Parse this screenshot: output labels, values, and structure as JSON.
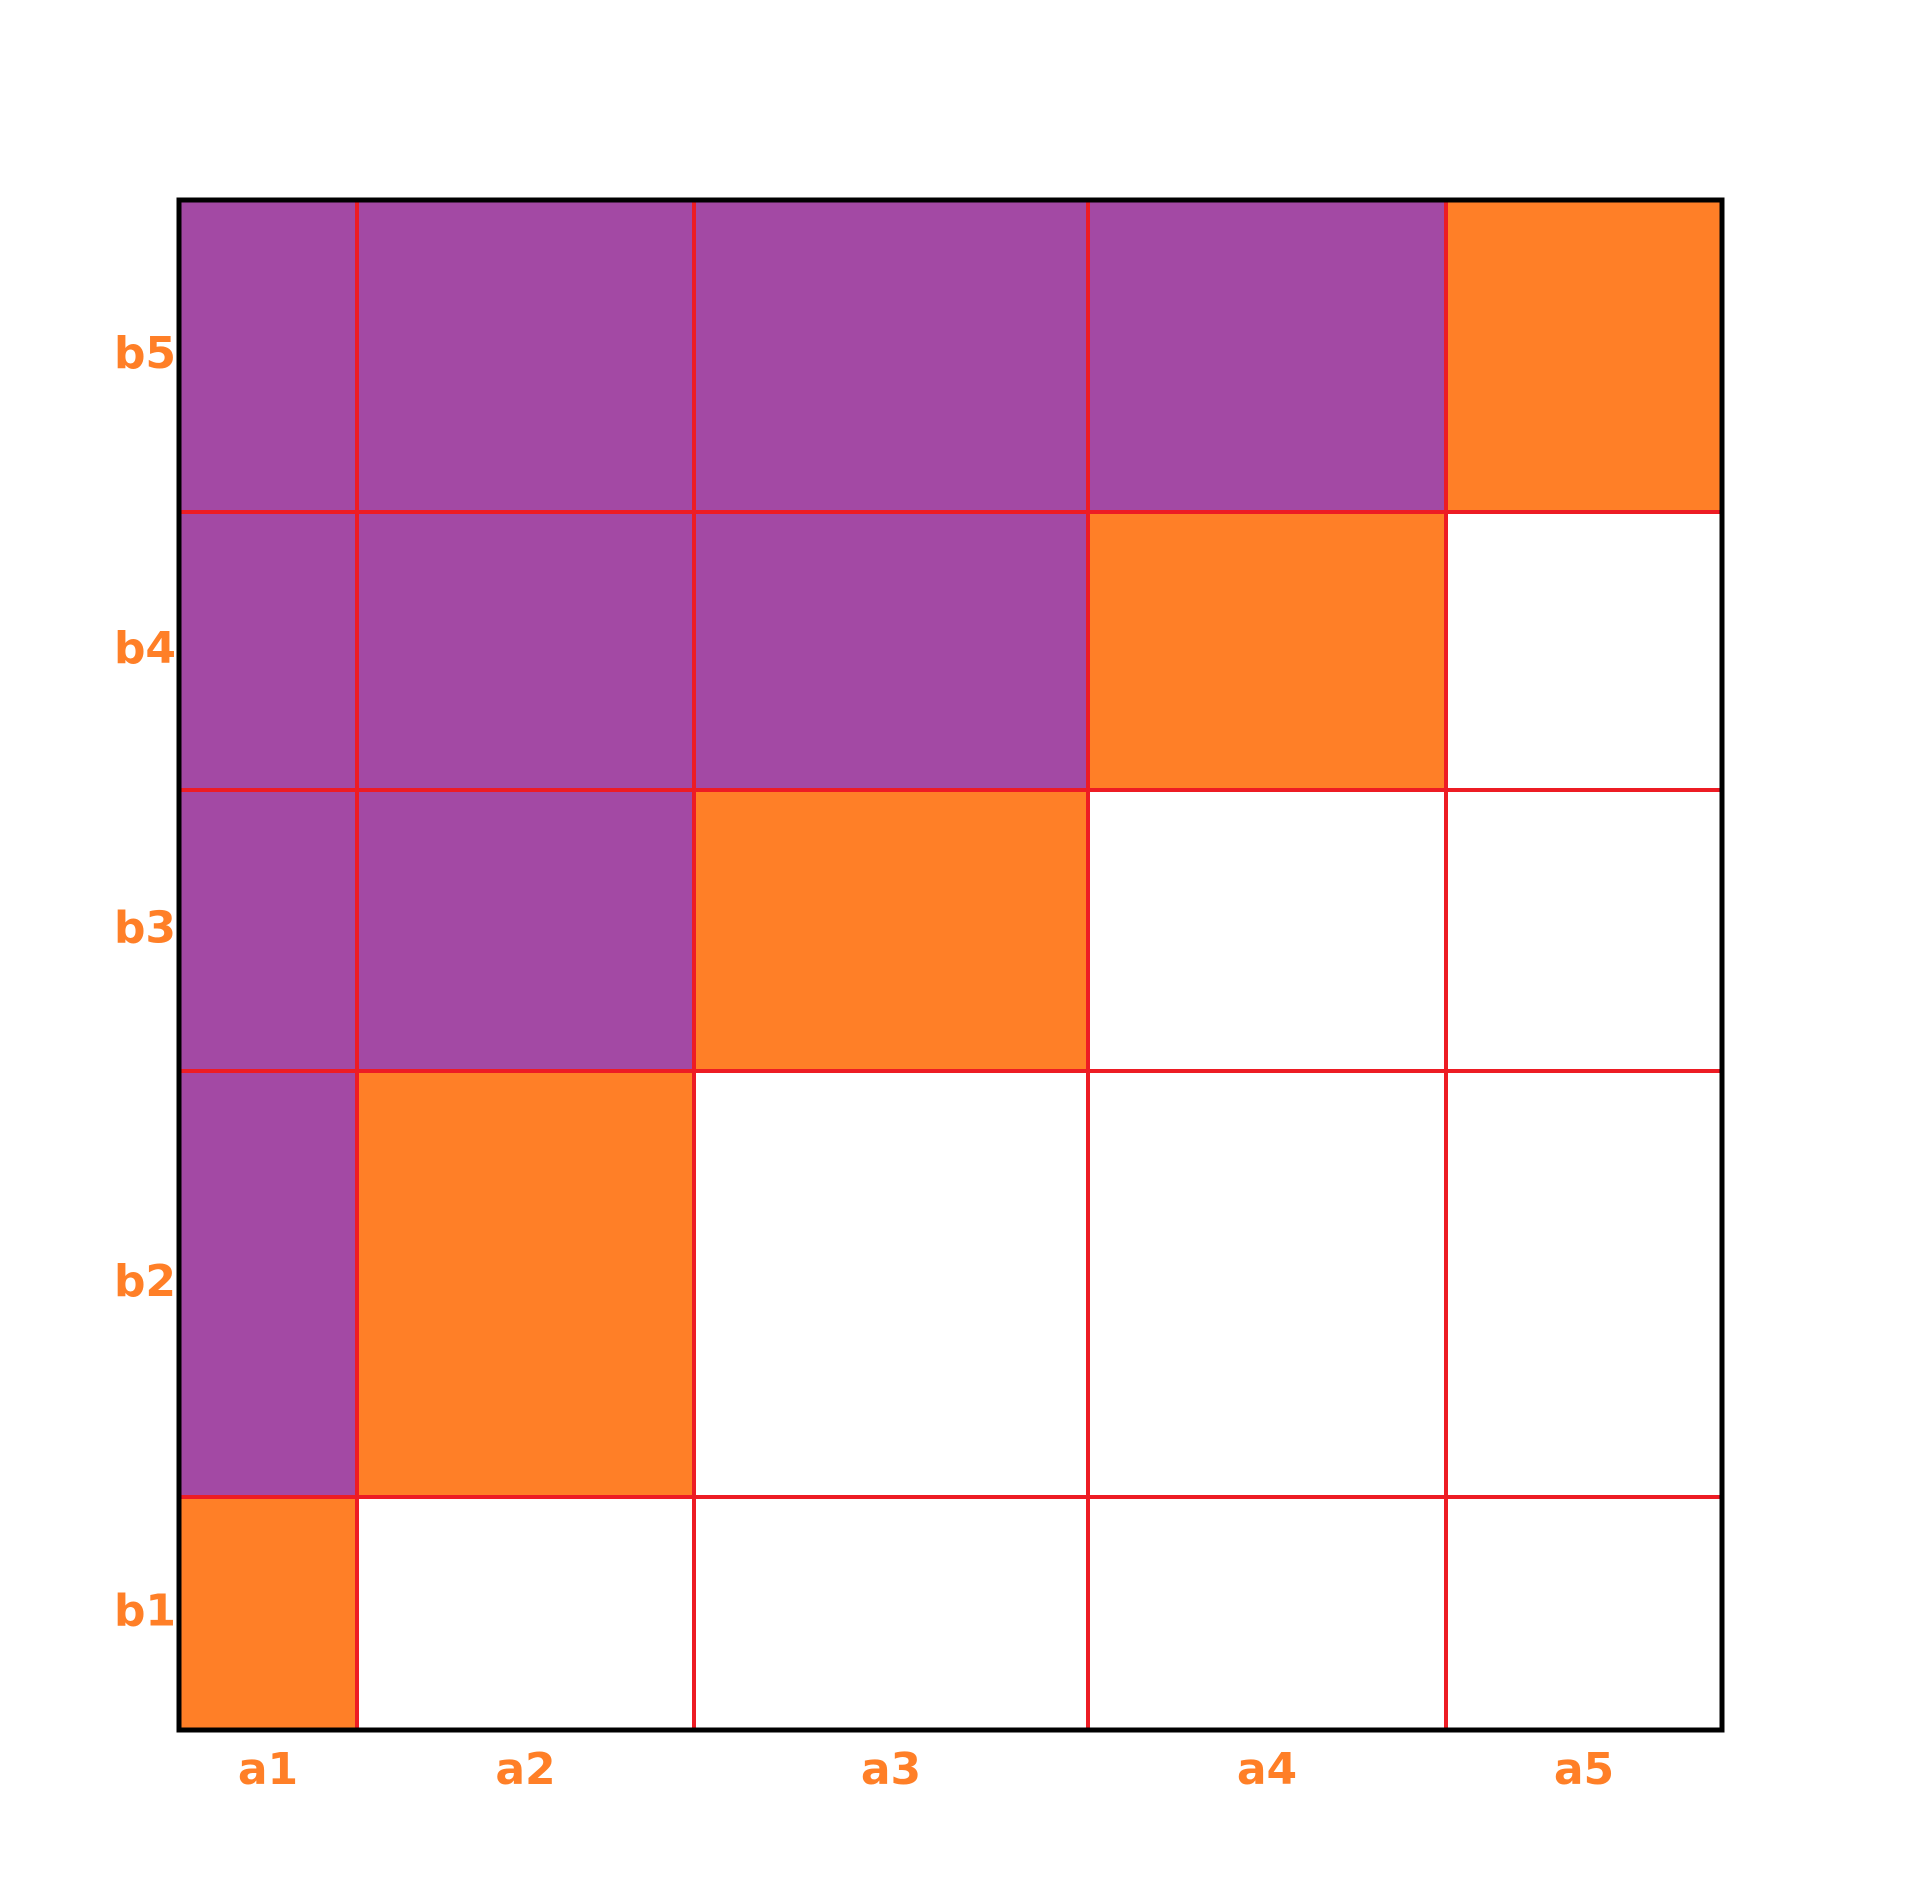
{
  "columns": [
    "a1",
    "a2",
    "a3",
    "a4",
    "a5"
  ],
  "rows": [
    "b1",
    "b2",
    "b3",
    "b4",
    "b5"
  ]
}
